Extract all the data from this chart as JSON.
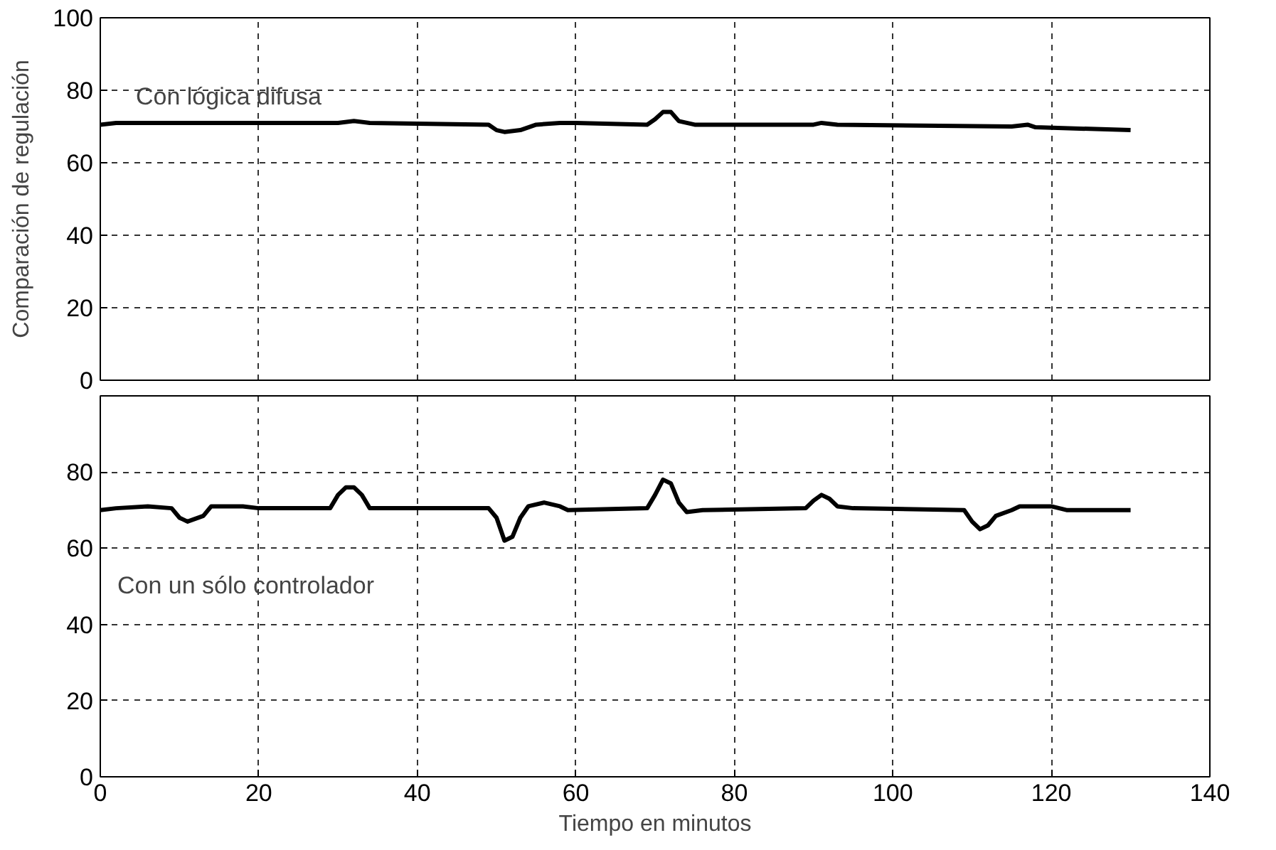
{
  "chart_data": [
    {
      "type": "line",
      "ylabel": "Comparación de regulación",
      "xlim": [
        0,
        140
      ],
      "xticks": [
        0,
        20,
        40,
        60,
        80,
        100,
        120,
        140
      ],
      "ylim": [
        0,
        100
      ],
      "yticks": [
        0,
        20,
        40,
        60,
        80,
        100
      ],
      "grid": true,
      "tick_labels": "y",
      "line_style": "solid",
      "series": [
        {
          "color": "#000000",
          "x": [
            0,
            2,
            30,
            32,
            34,
            49,
            50,
            51,
            53,
            55,
            58,
            60,
            69,
            70,
            71,
            72,
            73,
            75,
            90,
            91,
            93,
            115,
            117,
            118,
            130
          ],
          "values": [
            70.5,
            71,
            71,
            71.5,
            71,
            70.5,
            69,
            68.5,
            69,
            70.5,
            71,
            71,
            70.5,
            72,
            74,
            74,
            71.5,
            70.5,
            70.5,
            71,
            70.5,
            70,
            70.5,
            69.8,
            69
          ]
        }
      ],
      "annotations": [
        "Con lógica difusa"
      ]
    },
    {
      "type": "line",
      "xlabel": "Tiempo en minutos",
      "xlim": [
        0,
        140
      ],
      "xticks": [
        0,
        20,
        40,
        60,
        80,
        100,
        120,
        140
      ],
      "ylim": [
        0,
        100
      ],
      "yticks": [
        0,
        20,
        40,
        60,
        80
      ],
      "grid": true,
      "line_style": "solid",
      "series": [
        {
          "color": "#000000",
          "x": [
            0,
            2,
            6,
            9,
            10,
            11,
            13,
            14,
            18,
            20,
            29,
            30,
            31,
            32,
            33,
            34,
            49,
            50,
            51,
            52,
            53,
            54,
            56,
            58,
            59,
            69,
            70,
            71,
            72,
            73,
            74,
            76,
            89,
            90,
            91,
            92,
            93,
            95,
            109,
            110,
            111,
            112,
            113,
            115,
            116,
            120,
            122,
            130
          ],
          "values": [
            70,
            70.5,
            71,
            70.5,
            68,
            67,
            68.5,
            71,
            71,
            70.5,
            70.5,
            74,
            76,
            76,
            74,
            70.5,
            70.5,
            68,
            62,
            63,
            68,
            71,
            72,
            71,
            70,
            70.5,
            74,
            78,
            77,
            72,
            69.5,
            70,
            70.5,
            72.5,
            74,
            73,
            71,
            70.5,
            70,
            67,
            65,
            66,
            68.5,
            70,
            71,
            71,
            70,
            70
          ]
        }
      ],
      "annotations": [
        "Con un sólo controlador"
      ]
    }
  ]
}
